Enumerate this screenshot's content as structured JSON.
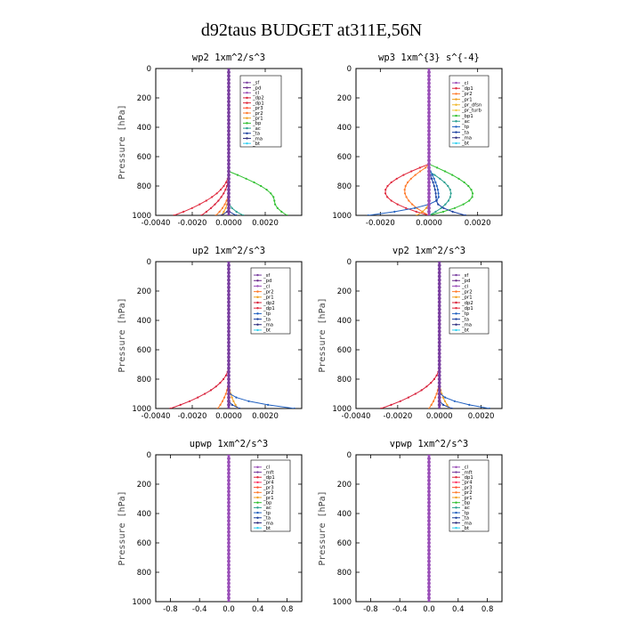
{
  "figure": {
    "title": "d92taus  BUDGET at311E,56N"
  },
  "colors": {
    "sf": "#7a3fa0",
    "pd": "#6a2a8a",
    "cl": "#9a4fb8",
    "mft": "#7a3fa0",
    "dp2": "#d8203a",
    "dp1": "#e0283c",
    "pr1": "#f0a020",
    "pr2": "#ff7a2a",
    "pr3": "#ff5030",
    "pr4": "#ff3060",
    "prdfsn": "#f0b830",
    "prturb": "#f0c840",
    "bp": "#30c030",
    "bp1": "#30c030",
    "ac": "#2aa090",
    "tp": "#2060c0",
    "ta": "#1a40a0",
    "ma": "#303080",
    "bt": "#30d0f0"
  },
  "chart_data": [
    {
      "type": "line",
      "title": "wp2  1xm^2/s^3",
      "ylabel": "Pressure [hPa]",
      "ylim": [
        1000,
        0
      ],
      "yticks": [
        "0",
        "200",
        "400",
        "600",
        "800",
        "1000"
      ],
      "xlim": [
        -0.004,
        0.004
      ],
      "xticks": [
        -0.004,
        -0.002,
        0.0,
        0.002
      ],
      "xtick_labels": [
        "-0.0040",
        "-0.0020",
        "0.0000",
        "0.0020"
      ],
      "legend": [
        "_sf",
        "_pd",
        "_cl",
        "_dp2",
        "_dp1",
        "_pr3",
        "_pr2",
        "_pr1",
        "_bp",
        "_ac",
        "_ta",
        "_ma",
        "_bt"
      ],
      "series": [
        {
          "name": "_dp1",
          "color_key": "dp1",
          "start": 700,
          "surface": -0.003
        },
        {
          "name": "_dp2",
          "color_key": "dp2",
          "start": 720,
          "surface": -0.0015
        },
        {
          "name": "_pr2",
          "color_key": "pr2",
          "start": 820,
          "surface": -0.0007
        },
        {
          "name": "_pr1",
          "color_key": "pr1",
          "start": 850,
          "surface": -0.0004
        },
        {
          "name": "_bp",
          "color_key": "bp",
          "start": 700,
          "peak_p": 900,
          "peak": 0.0025,
          "surface": 0.0032
        },
        {
          "name": "_ac",
          "color_key": "ac",
          "start": 900,
          "surface": 0.0008
        },
        {
          "name": "_ta",
          "color_key": "ta",
          "start": 960,
          "surface": 0.0004
        },
        {
          "name": "_ma",
          "color_key": "ma",
          "start": 950,
          "surface": -0.0004
        },
        {
          "name": "_sf",
          "color_key": "sf",
          "start": 0,
          "surface": 0.0
        }
      ]
    },
    {
      "type": "line",
      "title": "wp3  1xm^{3} s^{-4}",
      "ylabel": "",
      "ylim": [
        1000,
        0
      ],
      "yticks": [
        "0",
        "200",
        "400",
        "600",
        "800",
        "1000"
      ],
      "xlim": [
        -0.003,
        0.003
      ],
      "xticks": [
        -0.002,
        0.0,
        0.002
      ],
      "xtick_labels": [
        "-0.0020",
        "0.0000",
        "0.0020"
      ],
      "legend": [
        "_cl",
        "_dp1",
        "_pr2",
        "_pr1",
        "_pr_dfsn",
        "_pr_turb",
        "_bp1",
        "_ac",
        "_tp",
        "_ta",
        "_ma",
        "_bt"
      ],
      "series": [
        {
          "name": "_dp1",
          "color_key": "dp1",
          "start": 650,
          "peak_p": 840,
          "peak": -0.0018,
          "surface": 0.0
        },
        {
          "name": "_pr2",
          "color_key": "pr2",
          "start": 660,
          "peak_p": 830,
          "peak": -0.001,
          "surface": 0.0
        },
        {
          "name": "_bp1",
          "color_key": "bp1",
          "start": 650,
          "peak_p": 860,
          "peak": 0.0018,
          "surface": 0.0
        },
        {
          "name": "_ac",
          "color_key": "ac",
          "start": 700,
          "peak_p": 850,
          "peak": 0.0009,
          "surface": 0.0
        },
        {
          "name": "_tp",
          "color_key": "tp",
          "start": 680,
          "peak_p": 880,
          "peak": 0.0004,
          "surface": -0.0025
        },
        {
          "name": "_ta",
          "color_key": "ta",
          "start": 700,
          "peak_p": 900,
          "peak": 0.0003,
          "surface": 0.0015
        },
        {
          "name": "_pr1",
          "color_key": "pr1",
          "start": 900,
          "surface": -0.0005
        },
        {
          "name": "_cl",
          "color_key": "cl",
          "start": 0,
          "surface": 0.0
        }
      ]
    },
    {
      "type": "line",
      "title": "up2  1xm^2/s^3",
      "ylabel": "Pressure [hPa]",
      "ylim": [
        1000,
        0
      ],
      "yticks": [
        "0",
        "200",
        "400",
        "600",
        "800",
        "1000"
      ],
      "xlim": [
        -0.004,
        0.004
      ],
      "xticks": [
        -0.004,
        -0.002,
        0.0,
        0.002
      ],
      "xtick_labels": [
        "-0.0040",
        "-0.0020",
        "0.0000",
        "0.0020"
      ],
      "legend": [
        "_sf",
        "_pd",
        "_cl",
        "_pr2",
        "_pr1",
        "_dp2",
        "_dp1",
        "_tp",
        "_ta",
        "_ma",
        "_bt"
      ],
      "series": [
        {
          "name": "_dp2",
          "color_key": "dp2",
          "start": 700,
          "surface": -0.0032
        },
        {
          "name": "_pr2",
          "color_key": "pr2",
          "start": 780,
          "surface": -0.0006
        },
        {
          "name": "_pr1",
          "color_key": "pr1",
          "start": 800,
          "surface": 0.0005
        },
        {
          "name": "_tp",
          "color_key": "tp",
          "start": 880,
          "surface": 0.0036
        },
        {
          "name": "_ta",
          "color_key": "ta",
          "start": 940,
          "surface": 0.0006
        },
        {
          "name": "_sf",
          "color_key": "sf",
          "start": 0,
          "surface": 0.0
        }
      ]
    },
    {
      "type": "line",
      "title": "vp2  1xm^2/s^3",
      "ylabel": "Pressure [hPa]",
      "ylim": [
        1000,
        0
      ],
      "yticks": [
        "0",
        "200",
        "400",
        "600",
        "800",
        "1000"
      ],
      "xlim": [
        -0.004,
        0.003
      ],
      "xticks": [
        -0.004,
        -0.002,
        0.0,
        0.002
      ],
      "xtick_labels": [
        "-0.0040",
        "-0.0020",
        "0.0000",
        "0.0020"
      ],
      "legend": [
        "_sf",
        "_pd",
        "_cl",
        "_pr2",
        "_pr1",
        "_dp2",
        "_dp1",
        "_tp",
        "_ta",
        "_ma",
        "_bt"
      ],
      "series": [
        {
          "name": "_dp2",
          "color_key": "dp2",
          "start": 700,
          "surface": -0.0028
        },
        {
          "name": "_pr2",
          "color_key": "pr2",
          "start": 780,
          "surface": -0.0005
        },
        {
          "name": "_pr1",
          "color_key": "pr1",
          "start": 800,
          "surface": 0.0005
        },
        {
          "name": "_tp",
          "color_key": "tp",
          "start": 880,
          "surface": 0.0024
        },
        {
          "name": "_ta",
          "color_key": "ta",
          "start": 940,
          "surface": 0.0006
        },
        {
          "name": "_sf",
          "color_key": "sf",
          "start": 0,
          "surface": 0.0
        }
      ]
    },
    {
      "type": "line",
      "title": "upwp   1xm^2/s^3",
      "ylabel": "Pressure [hPa]",
      "ylim": [
        1000,
        0
      ],
      "yticks": [
        "0",
        "200",
        "400",
        "600",
        "800",
        "1000"
      ],
      "xlim": [
        -1.0,
        1.0
      ],
      "xticks": [
        -0.8,
        -0.4,
        0.0,
        0.4,
        0.8
      ],
      "xtick_labels": [
        "-0.8",
        "-0.4",
        "0.0",
        "0.4",
        "0.8"
      ],
      "legend": [
        "_cl",
        "_mft",
        "_dp1",
        "_pr4",
        "_pr3",
        "_pr2",
        "_pr1",
        "_bp",
        "_ac",
        "_tp",
        "_ta",
        "_ma",
        "_bt"
      ],
      "series": [
        {
          "name": "_cl",
          "color_key": "cl",
          "start": 0,
          "surface": 0.0
        }
      ]
    },
    {
      "type": "line",
      "title": "vpwp   1xm^2/s^3",
      "ylabel": "Pressure [hPa]",
      "ylim": [
        1000,
        0
      ],
      "yticks": [
        "0",
        "200",
        "400",
        "600",
        "800",
        "1000"
      ],
      "xlim": [
        -1.0,
        1.0
      ],
      "xticks": [
        -0.8,
        -0.4,
        0.0,
        0.4,
        0.8
      ],
      "xtick_labels": [
        "-0.8",
        "-0.4",
        "0.0",
        "0.4",
        "0.8"
      ],
      "legend": [
        "_cl",
        "_mft",
        "_dp1",
        "_pr4",
        "_pr3",
        "_pr2",
        "_pr1",
        "_bp",
        "_ac",
        "_tp",
        "_ta",
        "_ma",
        "_bt"
      ],
      "series": [
        {
          "name": "_cl",
          "color_key": "cl",
          "start": 0,
          "surface": 0.0
        }
      ]
    }
  ]
}
